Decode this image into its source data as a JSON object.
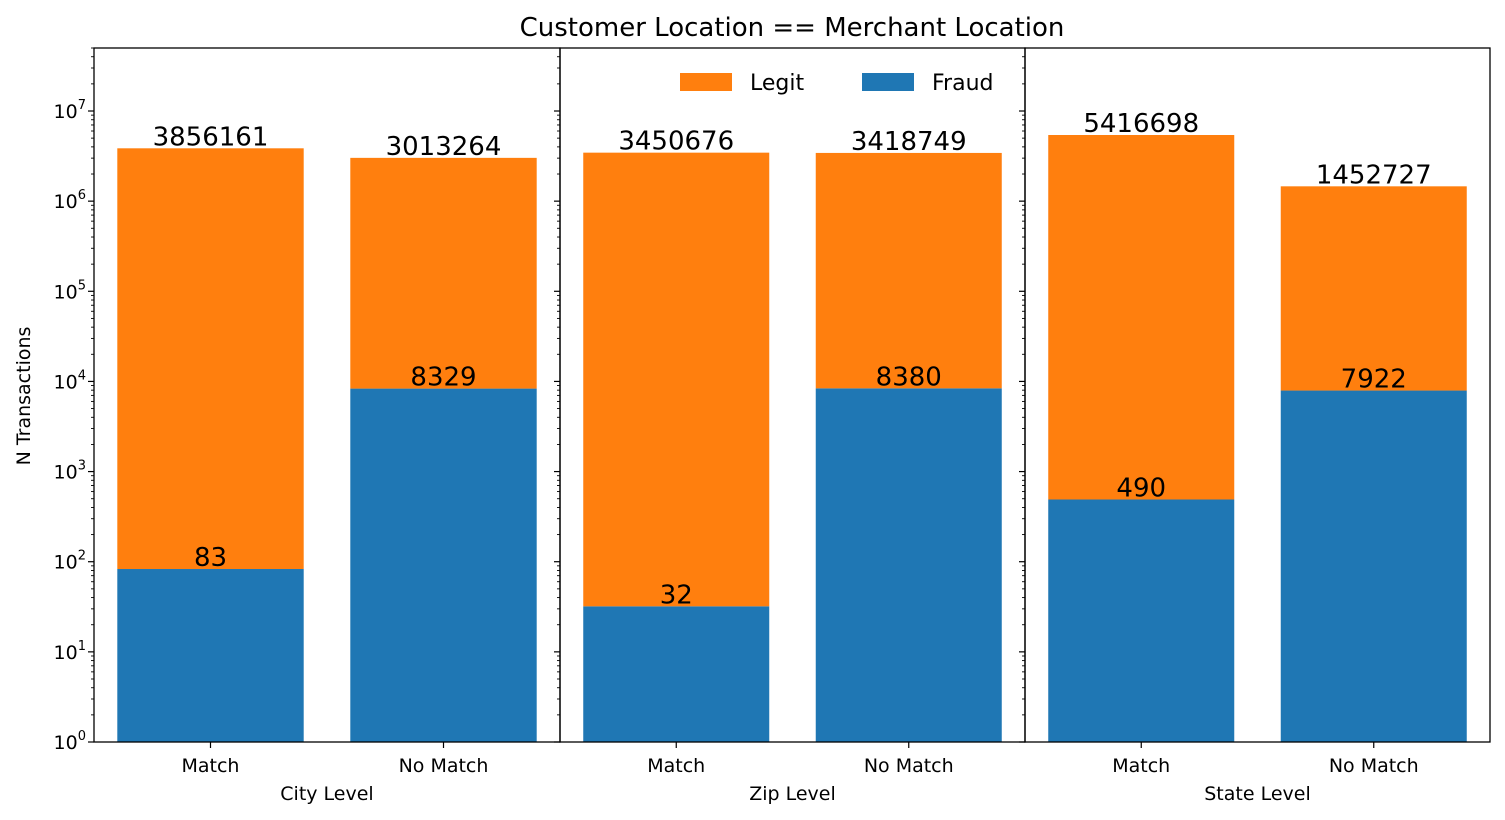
{
  "chart_data": {
    "type": "bar",
    "stacked": true,
    "title": "Customer Location  == Merchant Location",
    "ylabel": "N Transactions",
    "yscale": "log",
    "ylim": [
      1,
      50000000
    ],
    "yticks": [
      {
        "base": "10",
        "exp": "0"
      },
      {
        "base": "10",
        "exp": "1"
      },
      {
        "base": "10",
        "exp": "2"
      },
      {
        "base": "10",
        "exp": "3"
      },
      {
        "base": "10",
        "exp": "4"
      },
      {
        "base": "10",
        "exp": "5"
      },
      {
        "base": "10",
        "exp": "6"
      },
      {
        "base": "10",
        "exp": "7"
      }
    ],
    "legend": {
      "placement": "upper-center",
      "entries": [
        "Legit",
        "Fraud"
      ]
    },
    "colors": {
      "Legit": "#ff7f0e",
      "Fraud": "#1f77b4"
    },
    "panels": [
      {
        "xlabel": "City Level",
        "categories": [
          "Match",
          "No Match"
        ],
        "series": [
          {
            "name": "Fraud",
            "values": [
              83,
              8329
            ],
            "labels": [
              "83",
              "8329"
            ]
          },
          {
            "name": "Legit",
            "values": [
              3856161,
              3013264
            ],
            "labels": [
              "3856161",
              "3013264"
            ]
          }
        ]
      },
      {
        "xlabel": "Zip Level",
        "categories": [
          "Match",
          "No Match"
        ],
        "series": [
          {
            "name": "Fraud",
            "values": [
              32,
              8380
            ],
            "labels": [
              "32",
              "8380"
            ]
          },
          {
            "name": "Legit",
            "values": [
              3450676,
              3418749
            ],
            "labels": [
              "3450676",
              "3418749"
            ]
          }
        ]
      },
      {
        "xlabel": "State Level",
        "categories": [
          "Match",
          "No Match"
        ],
        "series": [
          {
            "name": "Fraud",
            "values": [
              490,
              7922
            ],
            "labels": [
              "490",
              "7922"
            ]
          },
          {
            "name": "Legit",
            "values": [
              5416698,
              1452727
            ],
            "labels": [
              "5416698",
              "1452727"
            ]
          }
        ]
      }
    ]
  }
}
